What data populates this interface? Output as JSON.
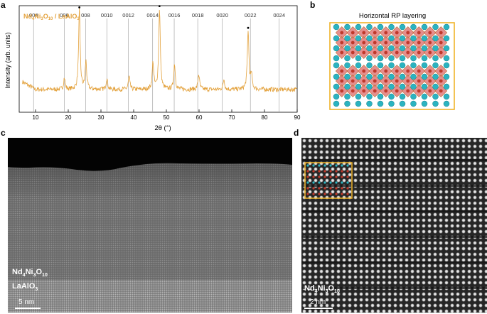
{
  "panels": {
    "a": "a",
    "b": "b",
    "c": "c",
    "d": "d"
  },
  "chart_data": {
    "type": "line",
    "title": "",
    "xlabel": "2θ (°)",
    "ylabel": "Intensity (arb. units)",
    "xlim": [
      5,
      90
    ],
    "xticks": [
      10,
      20,
      30,
      40,
      50,
      60,
      70,
      80,
      90
    ],
    "log_scale_y": true,
    "grid": false,
    "legend_label": "Nd4Ni3O10 / LaAlO3",
    "color": "#e3a13b",
    "reflections": [
      {
        "label": "004",
        "x": 9.4
      },
      {
        "label": "006",
        "x": 18.8
      },
      {
        "label": "008",
        "x": 25.3
      },
      {
        "label": "0010",
        "x": 31.8
      },
      {
        "label": "0012",
        "x": 38.4
      },
      {
        "label": "0014",
        "x": 45.8
      },
      {
        "label": "0016",
        "x": 52.4
      },
      {
        "label": "0018",
        "x": 59.6
      },
      {
        "label": "0020",
        "x": 67.1
      },
      {
        "label": "0022",
        "x": 75.7
      },
      {
        "label": "0024",
        "x": 84.5
      }
    ],
    "substrate_peaks": [
      23.4,
      47.9,
      75.0
    ],
    "peaks": [
      {
        "x": 18.8,
        "y": 0.9
      },
      {
        "x": 23.4,
        "y": 6.2
      },
      {
        "x": 25.4,
        "y": 2.2
      },
      {
        "x": 31.8,
        "y": 0.9
      },
      {
        "x": 38.6,
        "y": 1.0
      },
      {
        "x": 45.9,
        "y": 2.1
      },
      {
        "x": 47.9,
        "y": 6.3
      },
      {
        "x": 52.5,
        "y": 2.0
      },
      {
        "x": 59.9,
        "y": 1.2
      },
      {
        "x": 67.6,
        "y": 0.8
      },
      {
        "x": 75.0,
        "y": 4.6
      },
      {
        "x": 76.0,
        "y": 1.1
      }
    ]
  },
  "structure": {
    "title": "Horizontal RP layering",
    "frame_color": "#f0b429",
    "atom_colors": {
      "ni": "#e07a7a",
      "o": "#c0392b",
      "nd": "#2bb3c0"
    }
  },
  "stem_c": {
    "film_label": {
      "base": "Nd",
      "s1": "4",
      "mid1": "Ni",
      "s2": "3",
      "mid2": "O",
      "s3": "10"
    },
    "substrate_label": {
      "base": "LaAlO",
      "s1": "3"
    },
    "scale": "5 nm"
  },
  "stem_d": {
    "film_label": {
      "base": "Nd",
      "s1": "4",
      "mid1": "Ni",
      "s2": "3",
      "mid2": "O",
      "s3": "10"
    },
    "scale": "2 nm",
    "overlay_color": "#f0b429"
  }
}
